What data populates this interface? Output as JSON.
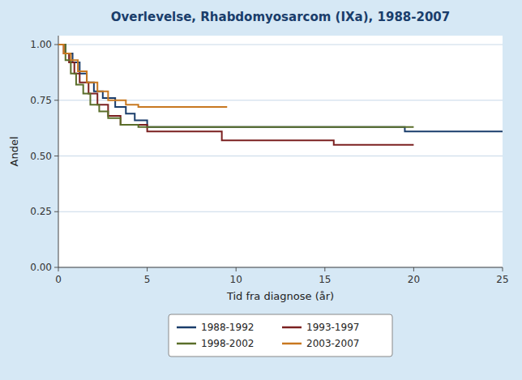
{
  "chart_data": {
    "type": "step",
    "title": "Overlevelse, Rhabdomyosarcom (IXa), 1988-2007",
    "x_label": "Tid fra diagnose (år)",
    "y_label": "Andel",
    "xlim": [
      0,
      25
    ],
    "ylim": [
      0,
      1.04
    ],
    "xticks": [
      0,
      5,
      10,
      15,
      20,
      25
    ],
    "yticks": [
      {
        "value": 0.0,
        "label": "0.00"
      },
      {
        "value": 0.25,
        "label": "0.25"
      },
      {
        "value": 0.5,
        "label": "0.50"
      },
      {
        "value": 0.75,
        "label": "0.75"
      },
      {
        "value": 1.0,
        "label": "1.00"
      }
    ],
    "grid": true,
    "legend": "bottom",
    "series": [
      {
        "name": "1988-1992",
        "color": "#1a3d6b",
        "x": [
          0,
          0.4,
          0.8,
          1.2,
          1.6,
          2.0,
          2.5,
          3.2,
          3.8,
          4.3,
          5.0,
          19.0,
          19.5,
          25.0
        ],
        "values": [
          1.0,
          0.96,
          0.92,
          0.87,
          0.83,
          0.79,
          0.76,
          0.72,
          0.69,
          0.66,
          0.63,
          0.63,
          0.61,
          0.61
        ]
      },
      {
        "name": "1993-1997",
        "color": "#7b2020",
        "x": [
          0,
          0.3,
          0.6,
          0.9,
          1.2,
          1.7,
          2.2,
          2.8,
          3.5,
          5.0,
          8.5,
          9.2,
          15.0,
          15.5,
          20.0
        ],
        "values": [
          1.0,
          0.96,
          0.92,
          0.87,
          0.83,
          0.78,
          0.73,
          0.68,
          0.64,
          0.61,
          0.61,
          0.57,
          0.57,
          0.55,
          0.55
        ]
      },
      {
        "name": "1998-2002",
        "color": "#5a6e2a",
        "x": [
          0,
          0.4,
          0.7,
          1.0,
          1.4,
          1.8,
          2.3,
          2.8,
          3.5,
          4.5,
          15.0,
          20.0
        ],
        "values": [
          1.0,
          0.93,
          0.87,
          0.82,
          0.78,
          0.73,
          0.7,
          0.67,
          0.64,
          0.63,
          0.63,
          0.63
        ]
      },
      {
        "name": "2003-2007",
        "color": "#c87820",
        "x": [
          0,
          0.3,
          0.7,
          1.1,
          1.6,
          2.2,
          2.8,
          3.8,
          4.5,
          9.5
        ],
        "values": [
          1.0,
          0.96,
          0.93,
          0.88,
          0.83,
          0.79,
          0.75,
          0.73,
          0.72,
          0.72
        ]
      }
    ]
  }
}
